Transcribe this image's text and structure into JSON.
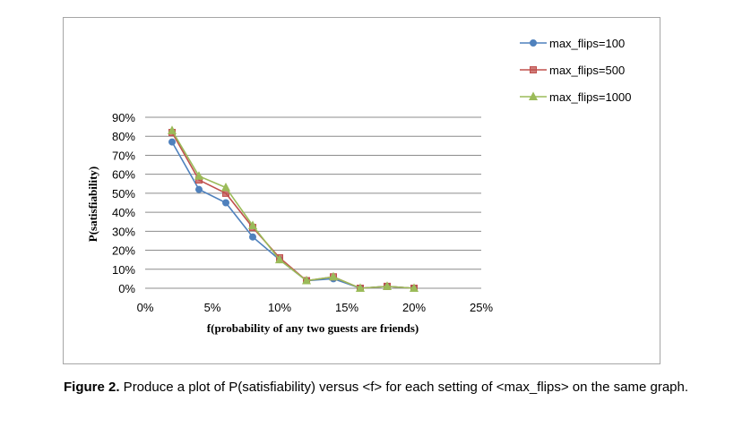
{
  "chart_data": {
    "type": "line",
    "xlabel": "f(probability of any two guests are friends)",
    "ylabel": "P(satisfiability)",
    "xlim": [
      0,
      25
    ],
    "ylim": [
      0,
      90
    ],
    "x_ticks": [
      "0%",
      "5%",
      "10%",
      "15%",
      "20%",
      "25%"
    ],
    "y_ticks": [
      "0%",
      "10%",
      "20%",
      "30%",
      "40%",
      "50%",
      "60%",
      "70%",
      "80%",
      "90%"
    ],
    "x_tick_values": [
      0,
      5,
      10,
      15,
      20,
      25
    ],
    "y_tick_values": [
      0,
      10,
      20,
      30,
      40,
      50,
      60,
      70,
      80,
      90
    ],
    "grid": "horizontal",
    "legend_position": "top-right",
    "x": [
      2,
      4,
      6,
      8,
      10,
      12,
      14,
      16,
      18,
      20
    ],
    "series": [
      {
        "name": "max_flips=100",
        "color": "#4f81bd",
        "marker": "circle",
        "values": [
          77,
          52,
          45,
          27,
          15,
          4,
          5,
          0,
          1,
          0
        ]
      },
      {
        "name": "max_flips=500",
        "color": "#c0504d",
        "marker": "square",
        "values": [
          82,
          57,
          50,
          32,
          16,
          4,
          6,
          0,
          1,
          0
        ]
      },
      {
        "name": "max_flips=1000",
        "color": "#9bbb59",
        "marker": "triangle",
        "values": [
          83,
          59,
          53,
          33,
          15,
          4,
          6,
          0,
          1,
          0
        ]
      }
    ]
  },
  "caption": {
    "label": "Figure 2.",
    "text": " Produce a plot of P(satisfiability) versus <f> for each setting of <max_flips> on the same graph."
  }
}
